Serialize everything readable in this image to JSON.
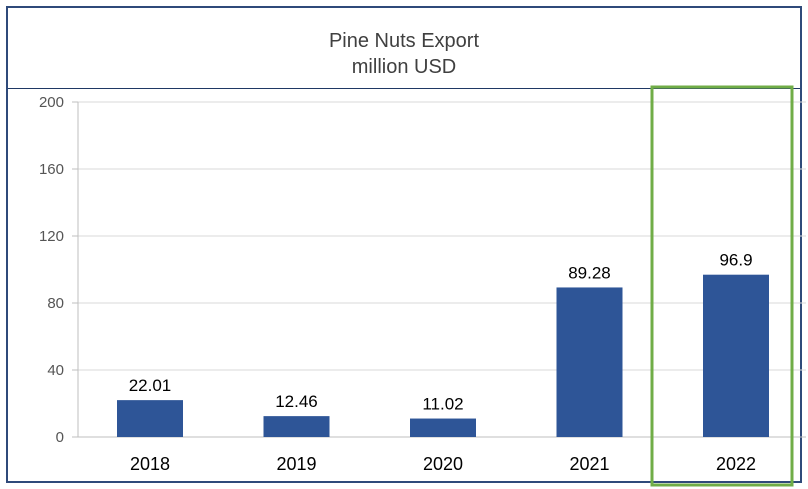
{
  "colors": {
    "bar": "#2e5597",
    "highlight_box": "#70ad47",
    "frame": "#2f4a7a",
    "grid": "#d9d9d9"
  },
  "chart_data": {
    "type": "bar",
    "title": "Pine Nuts Export",
    "subtitle": "million USD",
    "categories": [
      "2018",
      "2019",
      "2020",
      "2021",
      "2022"
    ],
    "values": [
      22.01,
      12.46,
      11.02,
      89.28,
      96.9
    ],
    "value_labels": [
      "22.01",
      "12.46",
      "11.02",
      "89.28",
      "96.9"
    ],
    "ylim": [
      0,
      200
    ],
    "yticks": [
      0,
      40,
      80,
      120,
      160,
      200
    ],
    "grid": true,
    "legend": "none",
    "highlighted_category": "2022"
  }
}
